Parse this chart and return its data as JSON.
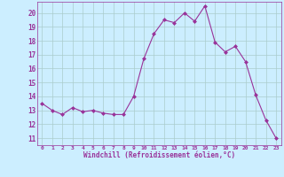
{
  "x": [
    0,
    1,
    2,
    3,
    4,
    5,
    6,
    7,
    8,
    9,
    10,
    11,
    12,
    13,
    14,
    15,
    16,
    17,
    18,
    19,
    20,
    21,
    22,
    23
  ],
  "y": [
    13.5,
    13.0,
    12.7,
    13.2,
    12.9,
    13.0,
    12.8,
    12.7,
    12.7,
    14.0,
    16.7,
    18.5,
    19.5,
    19.3,
    20.0,
    19.4,
    20.5,
    17.9,
    17.2,
    17.6,
    16.5,
    14.1,
    12.3,
    11.0
  ],
  "line_color": "#993399",
  "marker": "D",
  "marker_size": 2.0,
  "bg_color": "#cceeff",
  "grid_color": "#aacccc",
  "xlabel": "Windchill (Refroidissement éolien,°C)",
  "xlabel_color": "#993399",
  "tick_color": "#993399",
  "ylabel_ticks": [
    11,
    12,
    13,
    14,
    15,
    16,
    17,
    18,
    19,
    20
  ],
  "xlim": [
    -0.5,
    23.5
  ],
  "ylim": [
    10.5,
    20.8
  ]
}
